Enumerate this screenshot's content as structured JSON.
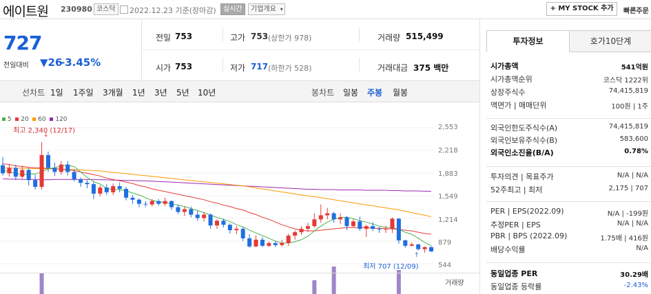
{
  "header": {
    "name": "에이트원",
    "code": "230980",
    "market_badge": "코스닥",
    "date_text": "2022.12.23 기준(장마감)",
    "realtime_badge": "실시간",
    "company_overview": "기업개요",
    "mystock_label": "+ MY STOCK 추가",
    "quick_label": "빠른주문"
  },
  "price": {
    "current": "727",
    "change_label": "전일대비",
    "change_value": "▼26",
    "change_percent": "-3.45%"
  },
  "quote": {
    "prev_close_label": "전일",
    "prev_close": "753",
    "open_label": "시가",
    "open": "753",
    "high_label": "고가",
    "high": "753",
    "high_limit": "(상한가 978)",
    "low_label": "저가",
    "low": "717",
    "low_limit": "(하한가 528)",
    "volume_label": "거래량",
    "volume": "515,499",
    "amount_label": "거래대금",
    "amount": "375 백만"
  },
  "chart_tabs": {
    "line_chart": "선차트",
    "periods": [
      "1일",
      "1주일",
      "3개월",
      "1년",
      "3년",
      "5년",
      "10년"
    ],
    "candle_chart": "봉차트",
    "candles": [
      "일봉",
      "주봉",
      "월봉"
    ],
    "selected_candle": "주봉"
  },
  "chart_data": {
    "type": "candlestick",
    "legend": [
      {
        "name": "5",
        "color": "#4caf50"
      },
      {
        "name": "20",
        "color": "#e53935"
      },
      {
        "name": "60",
        "color": "#ff9800"
      },
      {
        "name": "120",
        "color": "#9c27b0"
      }
    ],
    "yticks": [
      "2,553",
      "2,218",
      "1,883",
      "1,549",
      "1,214",
      "879",
      "544"
    ],
    "ylim": [
      544,
      2553
    ],
    "max_annotation": "최고 2,340 (12/17)",
    "min_annotation": "최저 707 (12/09)",
    "volume_label": "거래량",
    "candles": [
      [
        2000,
        1880,
        2120,
        1850
      ],
      [
        1880,
        1960,
        2010,
        1830
      ],
      [
        1960,
        1830,
        2010,
        1780
      ],
      [
        1830,
        1930,
        1990,
        1800
      ],
      [
        1930,
        1780,
        1960,
        1700
      ],
      [
        1780,
        1680,
        1860,
        1640
      ],
      [
        1680,
        2150,
        2340,
        1640
      ],
      [
        2150,
        1960,
        2200,
        1900
      ],
      [
        1960,
        1900,
        2040,
        1840
      ],
      [
        1900,
        2010,
        2060,
        1860
      ],
      [
        2010,
        1900,
        2060,
        1850
      ],
      [
        1900,
        1790,
        1940,
        1760
      ],
      [
        1790,
        1740,
        1820,
        1680
      ],
      [
        1740,
        1720,
        1780,
        1660
      ],
      [
        1720,
        1580,
        1760,
        1500
      ],
      [
        1580,
        1670,
        1700,
        1540
      ],
      [
        1670,
        1600,
        1720,
        1560
      ],
      [
        1600,
        1690,
        1730,
        1560
      ],
      [
        1690,
        1650,
        1740,
        1600
      ],
      [
        1650,
        1520,
        1680,
        1480
      ],
      [
        1520,
        1490,
        1560,
        1430
      ],
      [
        1490,
        1430,
        1510,
        1380
      ],
      [
        1430,
        1420,
        1470,
        1380
      ],
      [
        1420,
        1470,
        1500,
        1390
      ],
      [
        1470,
        1430,
        1500,
        1400
      ],
      [
        1430,
        1470,
        1520,
        1400
      ],
      [
        1470,
        1380,
        1480,
        1340
      ],
      [
        1380,
        1310,
        1420,
        1280
      ],
      [
        1310,
        1350,
        1390,
        1250
      ],
      [
        1350,
        1270,
        1390,
        1230
      ],
      [
        1270,
        1220,
        1330,
        1180
      ],
      [
        1220,
        1270,
        1310,
        1170
      ],
      [
        1270,
        1110,
        1290,
        1060
      ],
      [
        1110,
        1180,
        1200,
        1060
      ],
      [
        1180,
        1120,
        1210,
        1080
      ],
      [
        1120,
        1040,
        1140,
        990
      ],
      [
        1040,
        1060,
        1100,
        980
      ],
      [
        1060,
        920,
        1090,
        880
      ],
      [
        920,
        800,
        980,
        780
      ],
      [
        800,
        900,
        960,
        790
      ],
      [
        900,
        810,
        940,
        790
      ],
      [
        810,
        850,
        870,
        790
      ],
      [
        850,
        820,
        880,
        790
      ],
      [
        820,
        850,
        900,
        800
      ],
      [
        850,
        960,
        990,
        810
      ],
      [
        960,
        1010,
        1040,
        900
      ],
      [
        1010,
        1060,
        1100,
        970
      ],
      [
        1060,
        1100,
        1150,
        1010
      ],
      [
        1100,
        1200,
        1290,
        1080
      ],
      [
        1200,
        1260,
        1420,
        1150
      ],
      [
        1260,
        1290,
        1370,
        1200
      ],
      [
        1290,
        1200,
        1310,
        1150
      ],
      [
        1200,
        1230,
        1290,
        1130
      ],
      [
        1230,
        1100,
        1250,
        1040
      ],
      [
        1100,
        1170,
        1200,
        1080
      ],
      [
        1170,
        1060,
        1240,
        1030
      ],
      [
        1060,
        1100,
        1120,
        940
      ],
      [
        1100,
        1060,
        1160,
        1030
      ],
      [
        1060,
        1050,
        1090,
        1000
      ],
      [
        1050,
        1060,
        1110,
        1000
      ],
      [
        1060,
        1210,
        1230,
        1000
      ],
      [
        1210,
        890,
        1220,
        840
      ],
      [
        890,
        810,
        900,
        780
      ],
      [
        810,
        830,
        860,
        800
      ],
      [
        830,
        760,
        840,
        740
      ],
      [
        760,
        790,
        800,
        707
      ],
      [
        790,
        727,
        800,
        717
      ]
    ],
    "ma5": [
      1930,
      1900,
      1880,
      1860,
      1870,
      1870,
      1900,
      1950,
      1960,
      1990,
      2000,
      1980,
      1900,
      1820,
      1760,
      1720,
      1660,
      1640,
      1640,
      1620,
      1590,
      1560,
      1520,
      1480,
      1460,
      1450,
      1430,
      1410,
      1390,
      1360,
      1330,
      1300,
      1260,
      1230,
      1200,
      1170,
      1120,
      1090,
      1040,
      1000,
      960,
      920,
      880,
      850,
      850,
      870,
      900,
      950,
      1030,
      1100,
      1160,
      1200,
      1230,
      1230,
      1210,
      1180,
      1160,
      1130,
      1100,
      1080,
      1080,
      1050,
      1010,
      980,
      920,
      860,
      810
    ],
    "ma20": [
      2020,
      2010,
      1990,
      1980,
      1970,
      1960,
      1960,
      1950,
      1950,
      1940,
      1930,
      1920,
      1900,
      1880,
      1860,
      1840,
      1810,
      1790,
      1770,
      1750,
      1730,
      1700,
      1680,
      1650,
      1630,
      1610,
      1590,
      1570,
      1550,
      1530,
      1510,
      1490,
      1460,
      1440,
      1410,
      1390,
      1360,
      1340,
      1300,
      1270,
      1230,
      1200,
      1160,
      1120,
      1090,
      1060,
      1040,
      1030,
      1030,
      1040,
      1050,
      1060,
      1070,
      1080,
      1080,
      1080,
      1080,
      1070,
      1070,
      1060,
      1060,
      1050,
      1040,
      1030,
      1010,
      990,
      980
    ],
    "ma60": [
      1960,
      1960,
      1955,
      1955,
      1950,
      1950,
      1950,
      1945,
      1945,
      1940,
      1940,
      1935,
      1930,
      1925,
      1920,
      1915,
      1905,
      1895,
      1885,
      1875,
      1865,
      1855,
      1845,
      1835,
      1825,
      1815,
      1805,
      1795,
      1785,
      1775,
      1765,
      1755,
      1745,
      1735,
      1725,
      1715,
      1705,
      1695,
      1680,
      1665,
      1650,
      1635,
      1620,
      1605,
      1590,
      1575,
      1560,
      1545,
      1535,
      1520,
      1505,
      1490,
      1475,
      1460,
      1445,
      1430,
      1415,
      1400,
      1385,
      1370,
      1355,
      1340,
      1320,
      1300,
      1280,
      1260,
      1240
    ],
    "ma120": [
      1800,
      1795,
      1795,
      1790,
      1790,
      1790,
      1785,
      1785,
      1790,
      1790,
      1790,
      1790,
      1790,
      1790,
      1790,
      1785,
      1785,
      1780,
      1780,
      1775,
      1775,
      1770,
      1770,
      1765,
      1760,
      1755,
      1750,
      1745,
      1740,
      1735,
      1730,
      1725,
      1720,
      1715,
      1710,
      1705,
      1700,
      1695,
      1690,
      1685,
      1680,
      1675,
      1670,
      1665,
      1660,
      1655,
      1650,
      1645,
      1645,
      1640,
      1640,
      1640,
      1635,
      1635,
      1635,
      1635,
      1630,
      1630,
      1630,
      1630,
      1625,
      1625,
      1620,
      1620,
      1620,
      1615,
      1615
    ],
    "volumes": [
      0,
      0,
      0,
      0,
      0,
      0,
      30,
      0,
      0,
      0,
      0,
      0,
      0,
      0,
      0,
      0,
      0,
      0,
      0,
      0,
      0,
      0,
      0,
      0,
      0,
      0,
      0,
      0,
      0,
      0,
      0,
      0,
      0,
      0,
      0,
      0,
      0,
      0,
      0,
      0,
      0,
      0,
      0,
      0,
      0,
      0,
      0,
      0,
      20,
      0,
      0,
      40,
      0,
      0,
      0,
      0,
      0,
      0,
      0,
      0,
      0,
      35,
      0,
      0,
      0,
      0,
      0
    ]
  },
  "info_panel": {
    "tabs": [
      "투자정보",
      "호가10단계"
    ],
    "rows1": [
      {
        "label": "시가총액",
        "value": "541억원",
        "bold": true
      },
      {
        "label": "시가총액순위",
        "value": "코스닥 1222위"
      },
      {
        "label": "상장주식수",
        "value": "74,415,819"
      },
      {
        "label": "액면가 | 매매단위",
        "value": "100원 | 1주"
      }
    ],
    "rows2": [
      {
        "label": "외국인한도주식수(A)",
        "value": "74,415,819"
      },
      {
        "label": "외국인보유주식수(B)",
        "value": "583,600"
      },
      {
        "label": "외국인소진율(B/A)",
        "value": "0.78%",
        "bold": true
      }
    ],
    "rows3": [
      {
        "label": "투자의견 | 목표주가",
        "value": "N/A | N/A"
      },
      {
        "label": "52주최고 | 최저",
        "value": "2,175 | 707"
      }
    ],
    "rows4": [
      {
        "label": "PER | EPS(2022.09)",
        "value": "N/A | -199원"
      },
      {
        "label": "추정PER | EPS",
        "value": "N/A | N/A"
      },
      {
        "label": "PBR | BPS (2022.09)",
        "value": "1.75배 | 416원"
      },
      {
        "label": "배당수익률",
        "value": "N/A"
      }
    ],
    "rows5": [
      {
        "label": "동일업종 PER",
        "value": "30.29배",
        "bold": true
      },
      {
        "label": "동일업종 등락률",
        "value": "-2.43%",
        "color": "#1a5fd6"
      }
    ]
  }
}
